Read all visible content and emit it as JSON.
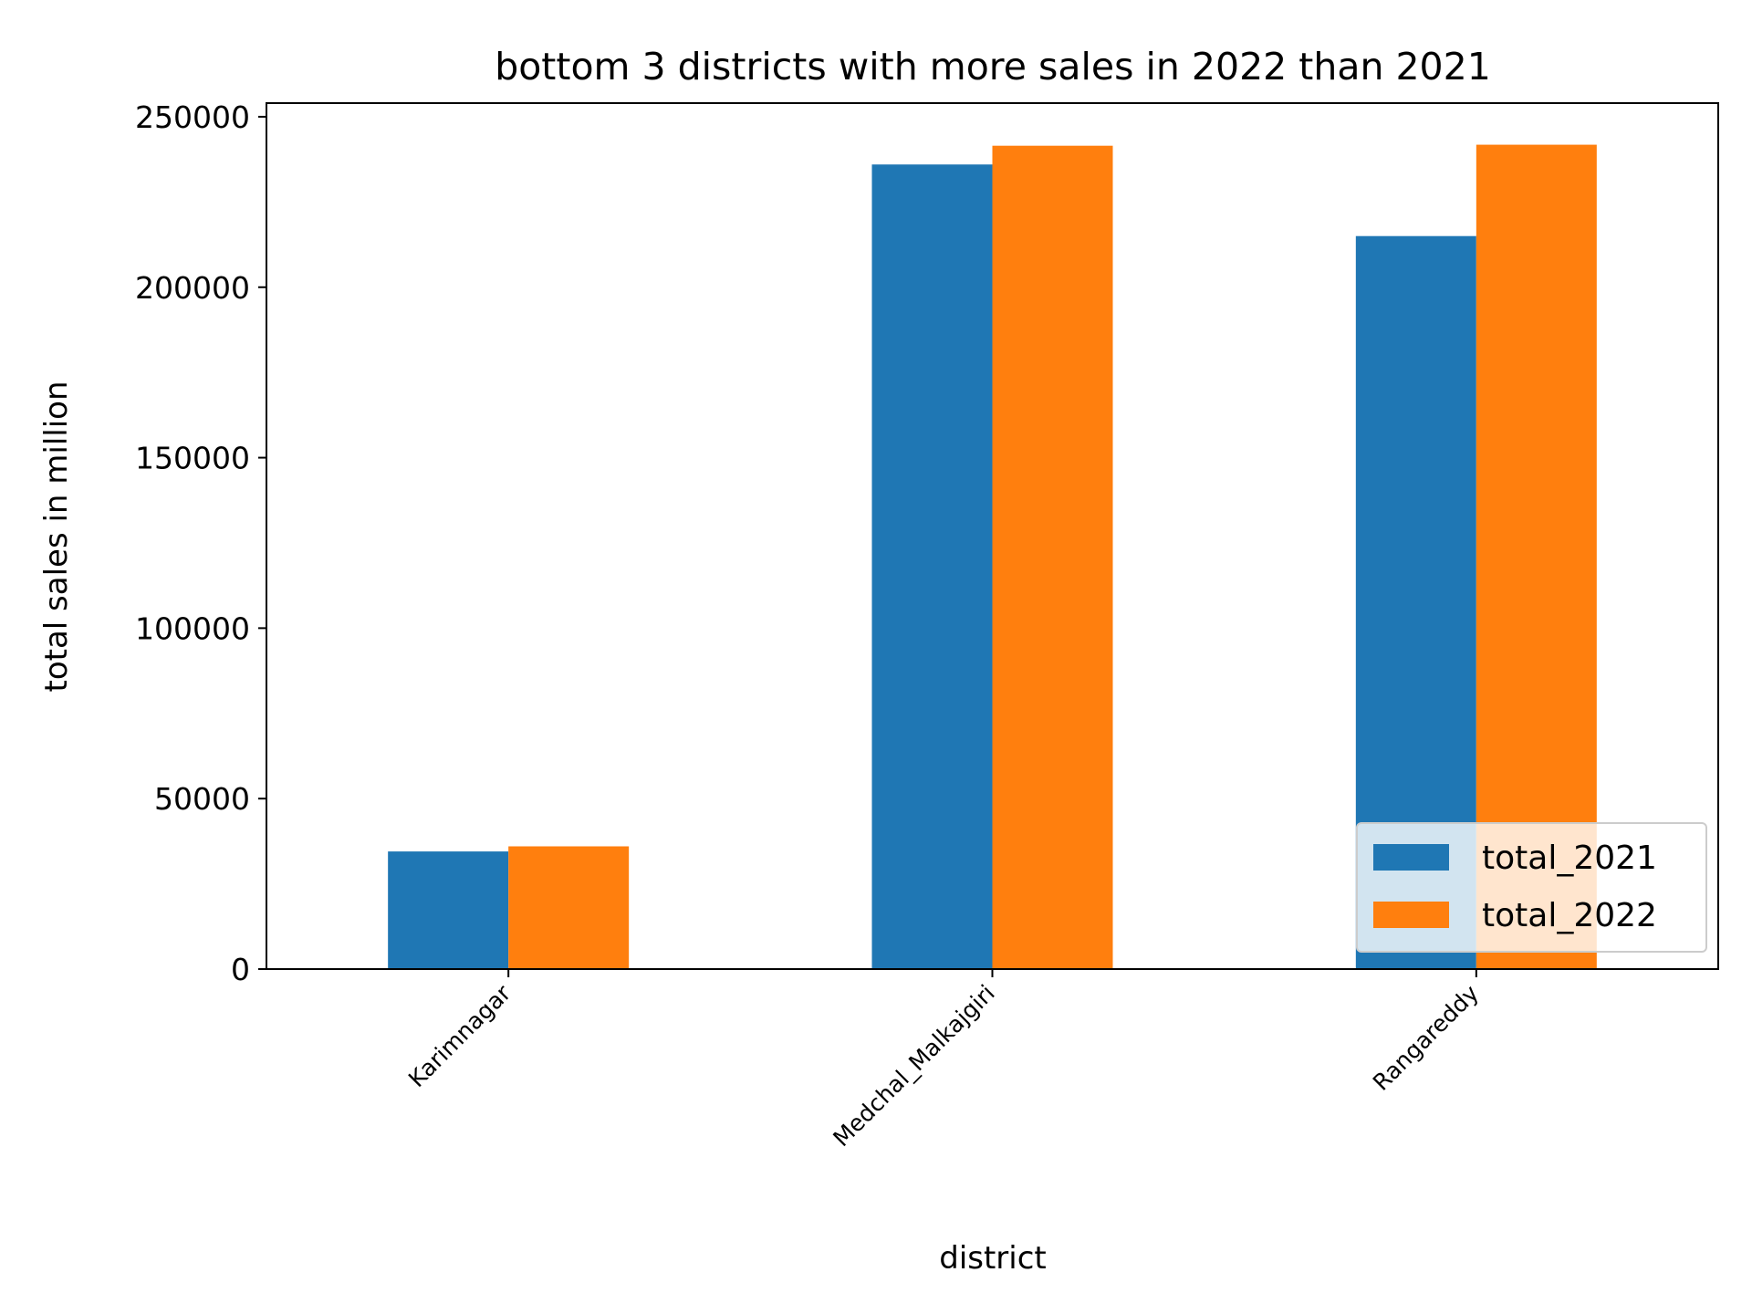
{
  "chart_data": {
    "type": "bar",
    "title": "bottom 3 districts with more sales in 2022 than 2021",
    "xlabel": "district",
    "ylabel": "total sales in million",
    "categories": [
      "Karimnagar",
      "Medchal_Malkajgiri",
      "Rangareddy"
    ],
    "series": [
      {
        "name": "total_2021",
        "color": "#1f77b4",
        "values": [
          34500,
          236000,
          215000
        ]
      },
      {
        "name": "total_2022",
        "color": "#ff7f0e",
        "values": [
          36000,
          241500,
          241800
        ]
      }
    ],
    "ylim": [
      0,
      254000
    ],
    "yticks": [
      0,
      50000,
      100000,
      150000,
      200000,
      250000
    ],
    "ytick_labels": [
      "0",
      "50000",
      "100000",
      "150000",
      "200000",
      "250000"
    ],
    "grid": false,
    "legend_position": "lower right"
  }
}
